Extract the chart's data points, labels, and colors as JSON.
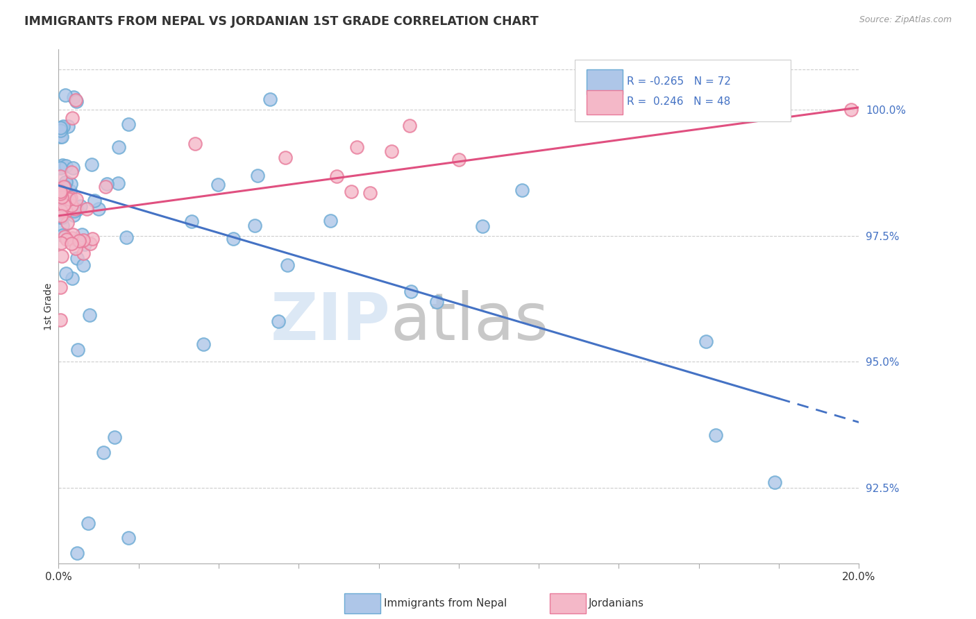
{
  "title": "IMMIGRANTS FROM NEPAL VS JORDANIAN 1ST GRADE CORRELATION CHART",
  "source": "Source: ZipAtlas.com",
  "ylabel": "1st Grade",
  "yticks": [
    92.5,
    95.0,
    97.5,
    100.0
  ],
  "ytick_labels": [
    "92.5%",
    "95.0%",
    "97.5%",
    "100.0%"
  ],
  "xtick_positions": [
    0.0,
    2.0,
    4.0,
    6.0,
    8.0,
    10.0,
    12.0,
    14.0,
    16.0,
    18.0,
    20.0
  ],
  "xmin": 0.0,
  "xmax": 20.0,
  "ymin": 91.0,
  "ymax": 101.2,
  "nepal_R": -0.265,
  "nepal_N": 72,
  "jordan_R": 0.246,
  "jordan_N": 48,
  "nepal_color": "#aec6e8",
  "nepal_edge_color": "#6aaad4",
  "jordan_color": "#f4b8c8",
  "jordan_edge_color": "#e87a9a",
  "nepal_line_color": "#4472c4",
  "jordan_line_color": "#e05080",
  "legend_nepal": "Immigrants from Nepal",
  "legend_jordan": "Jordanians",
  "background_color": "#ffffff",
  "nepal_line_y0": 98.5,
  "nepal_line_y20": 93.8,
  "jordan_line_y0": 97.9,
  "jordan_line_y20": 100.05,
  "nepal_solid_xend": 18.0,
  "watermark_zip_color": "#dce8f5",
  "watermark_atlas_color": "#c8c8c8"
}
